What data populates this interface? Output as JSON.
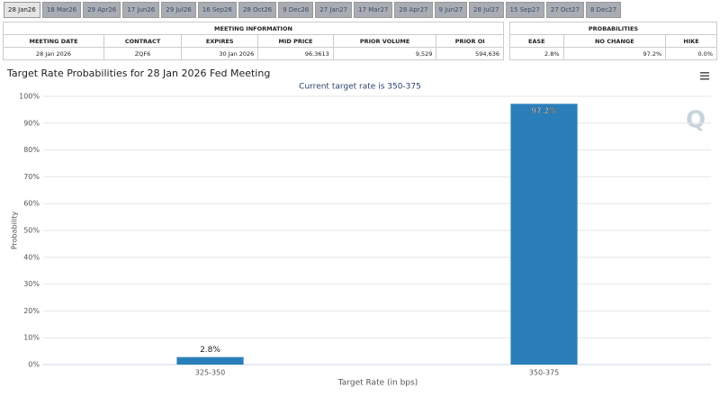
{
  "tabs": [
    "28 Jan26",
    "18 Mar26",
    "29 Apr26",
    "17 Jun26",
    "29 Jul26",
    "16 Sep26",
    "28 Oct26",
    "9 Dec26",
    "27 Jan27",
    "17 Mar27",
    "28 Apr27",
    "9 Jun27",
    "28 Jul27",
    "15 Sep27",
    "27 Oct27",
    "8 Dec27"
  ],
  "meeting_info": {
    "title": "MEETING INFORMATION",
    "headers": [
      "MEETING DATE",
      "CONTRACT",
      "EXPIRES",
      "MID PRICE",
      "PRIOR VOLUME",
      "PRIOR OI"
    ],
    "row": [
      "28 Jan 2026",
      "ZQF6",
      "30 Jan 2026",
      "96.3613",
      "9,529",
      "594,636"
    ]
  },
  "probabilities": {
    "title": "PROBABILITIES",
    "headers": [
      "EASE",
      "NO CHANGE",
      "HIKE"
    ],
    "row": [
      "2.8%",
      "97.2%",
      "0.0%"
    ]
  },
  "chart_data": {
    "type": "bar",
    "title": "Target Rate Probabilities for 28 Jan 2026 Fed Meeting",
    "subtitle": "Current target rate is 350-375",
    "x_label": "Target Rate (in bps)",
    "y_label": "Probability",
    "categories": [
      "325-350",
      "350-375"
    ],
    "values": [
      2.8,
      97.2
    ],
    "value_labels": [
      "2.8%",
      "97.2%"
    ],
    "color": "#2a7fba",
    "ylim": [
      0,
      100
    ],
    "yticks": [
      {
        "value": 0,
        "label": "0%"
      },
      {
        "value": 10,
        "label": "10%"
      },
      {
        "value": 20,
        "label": "20%"
      },
      {
        "value": 30,
        "label": "30%"
      },
      {
        "value": 40,
        "label": "40%"
      },
      {
        "value": 50,
        "label": "50%"
      },
      {
        "value": 60,
        "label": "60%"
      },
      {
        "value": 70,
        "label": "70%"
      },
      {
        "value": 80,
        "label": "80%"
      },
      {
        "value": 90,
        "label": "90%"
      },
      {
        "value": 100,
        "label": "100%"
      }
    ],
    "grid": true
  }
}
